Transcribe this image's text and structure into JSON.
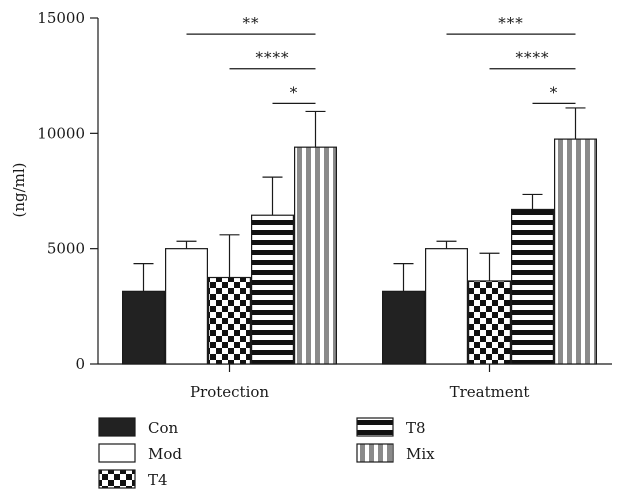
{
  "chart_data": {
    "type": "bar",
    "title": "",
    "xlabel": "",
    "ylabel": "(ng/ml)",
    "ylim": [
      0,
      15000
    ],
    "yticks": [
      0,
      5000,
      10000,
      15000
    ],
    "grid": false,
    "legend_position": "bottom-left",
    "categories": [
      "Protection",
      "Treatment"
    ],
    "series": [
      {
        "name": "Con",
        "pattern": "solid",
        "color": "#222222",
        "values": [
          3150,
          3150
        ],
        "errors": [
          1200,
          1200
        ]
      },
      {
        "name": "Mod",
        "pattern": "white",
        "color": "#ffffff",
        "values": [
          5000,
          5000
        ],
        "errors": [
          320,
          320
        ]
      },
      {
        "name": "T4",
        "pattern": "checker",
        "color": "#111111",
        "values": [
          3750,
          3600
        ],
        "errors": [
          1850,
          1200
        ]
      },
      {
        "name": "T8",
        "pattern": "horizontal-stripes",
        "color": "#111111",
        "values": [
          6450,
          6700
        ],
        "errors": [
          1650,
          650
        ]
      },
      {
        "name": "Mix",
        "pattern": "vertical-stripes",
        "color": "#8a8a8a",
        "values": [
          9400,
          9750
        ],
        "errors": [
          1550,
          1350
        ]
      }
    ],
    "significance": [
      {
        "category": 0,
        "from": 1,
        "to": 4,
        "label": "**",
        "y": 14300
      },
      {
        "category": 0,
        "from": 2,
        "to": 4,
        "label": "****",
        "y": 12800
      },
      {
        "category": 0,
        "from": 3,
        "to": 4,
        "label": "*",
        "y": 11300
      },
      {
        "category": 1,
        "from": 1,
        "to": 4,
        "label": "***",
        "y": 14300
      },
      {
        "category": 1,
        "from": 2,
        "to": 4,
        "label": "****",
        "y": 12800
      },
      {
        "category": 1,
        "from": 3,
        "to": 4,
        "label": "*",
        "y": 11300
      }
    ]
  }
}
